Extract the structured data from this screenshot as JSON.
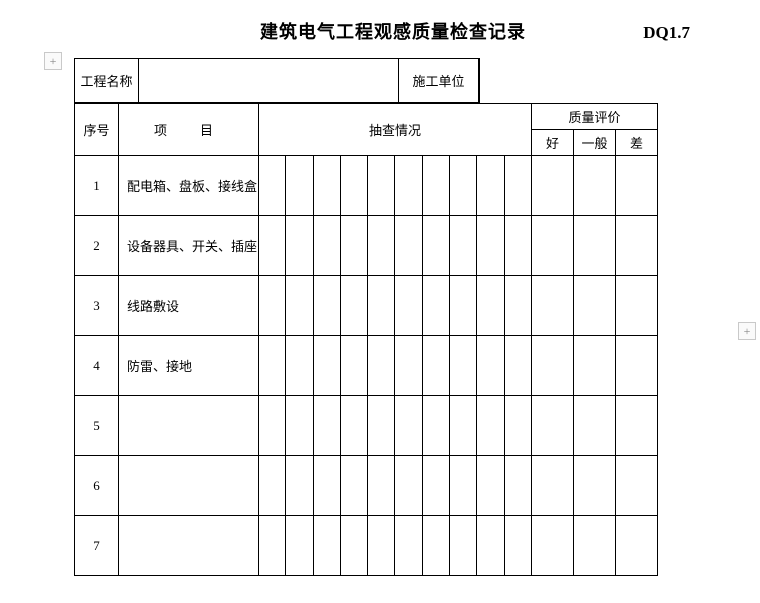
{
  "header": {
    "title": "建筑电气工程观感质量检查记录",
    "code": "DQ1.7"
  },
  "info": {
    "project_name_label": "工程名称",
    "project_name_value": "",
    "contractor_label": "施工单位",
    "contractor_value": ""
  },
  "table_head": {
    "seq": "序号",
    "item": "项　目",
    "check": "抽查情况",
    "eval": "质量评价",
    "good": "好",
    "normal": "一般",
    "bad": "差"
  },
  "rows": [
    {
      "seq": "1",
      "item": "配电箱、盘板、接线盒"
    },
    {
      "seq": "2",
      "item": "设备器具、开关、插座"
    },
    {
      "seq": "3",
      "item": "线路敷设"
    },
    {
      "seq": "4",
      "item": "防雷、接地"
    },
    {
      "seq": "5",
      "item": ""
    },
    {
      "seq": "6",
      "item": ""
    },
    {
      "seq": "7",
      "item": ""
    }
  ],
  "style": {
    "check_cols": 10,
    "border_color": "#000000",
    "background": "#ffffff",
    "font_family": "SimSun",
    "title_fontsize": 18,
    "body_fontsize": 13
  },
  "grips": {
    "plus": "+"
  }
}
